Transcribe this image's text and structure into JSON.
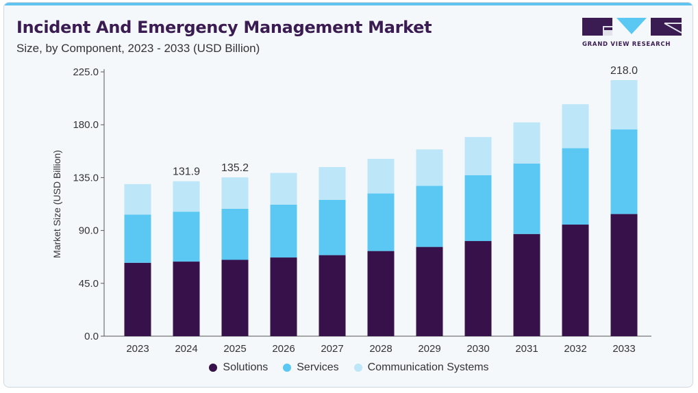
{
  "header": {
    "title": "Incident And Emergency Management Market",
    "subtitle": "Size, by Component, 2023 - 2033 (USD Billion)"
  },
  "logo": {
    "text": "GRAND VIEW RESEARCH",
    "icon": "gvr-logo"
  },
  "colors": {
    "title": "#3a1c52",
    "solutions": "#36114a",
    "services": "#5bc8f4",
    "communication_systems": "#bde6f8",
    "accent_bar": "#5fc3ef"
  },
  "chart_data": {
    "type": "bar",
    "stacked": true,
    "title": "Incident And Emergency Management Market",
    "subtitle": "Size, by Component, 2023 - 2033 (USD Billion)",
    "xlabel": "",
    "ylabel": "Market Size (USD Billion)",
    "ylim": [
      0,
      225
    ],
    "yticks": [
      "0.0",
      "45.0",
      "90.0",
      "135.0",
      "180.0",
      "225.0"
    ],
    "grid": false,
    "legend_position": "bottom",
    "categories": [
      "2023",
      "2024",
      "2025",
      "2026",
      "2027",
      "2028",
      "2029",
      "2030",
      "2031",
      "2032",
      "2033"
    ],
    "series": [
      {
        "name": "Solutions",
        "color": "#36114a",
        "values": [
          62.5,
          63.5,
          65.0,
          67.0,
          69.0,
          72.5,
          76.0,
          81.0,
          87.0,
          95.0,
          104.0
        ]
      },
      {
        "name": "Services",
        "color": "#5bc8f4",
        "values": [
          41.0,
          42.5,
          43.5,
          45.0,
          47.0,
          49.0,
          52.0,
          56.0,
          60.0,
          65.0,
          72.0
        ]
      },
      {
        "name": "Communication Systems",
        "color": "#bde6f8",
        "values": [
          26.0,
          25.9,
          26.7,
          27.0,
          28.0,
          29.5,
          31.0,
          32.5,
          35.0,
          37.5,
          42.0
        ]
      }
    ],
    "data_labels": [
      {
        "category": "2024",
        "text": "131.9"
      },
      {
        "category": "2025",
        "text": "135.2"
      },
      {
        "category": "2033",
        "text": "218.0"
      }
    ]
  }
}
